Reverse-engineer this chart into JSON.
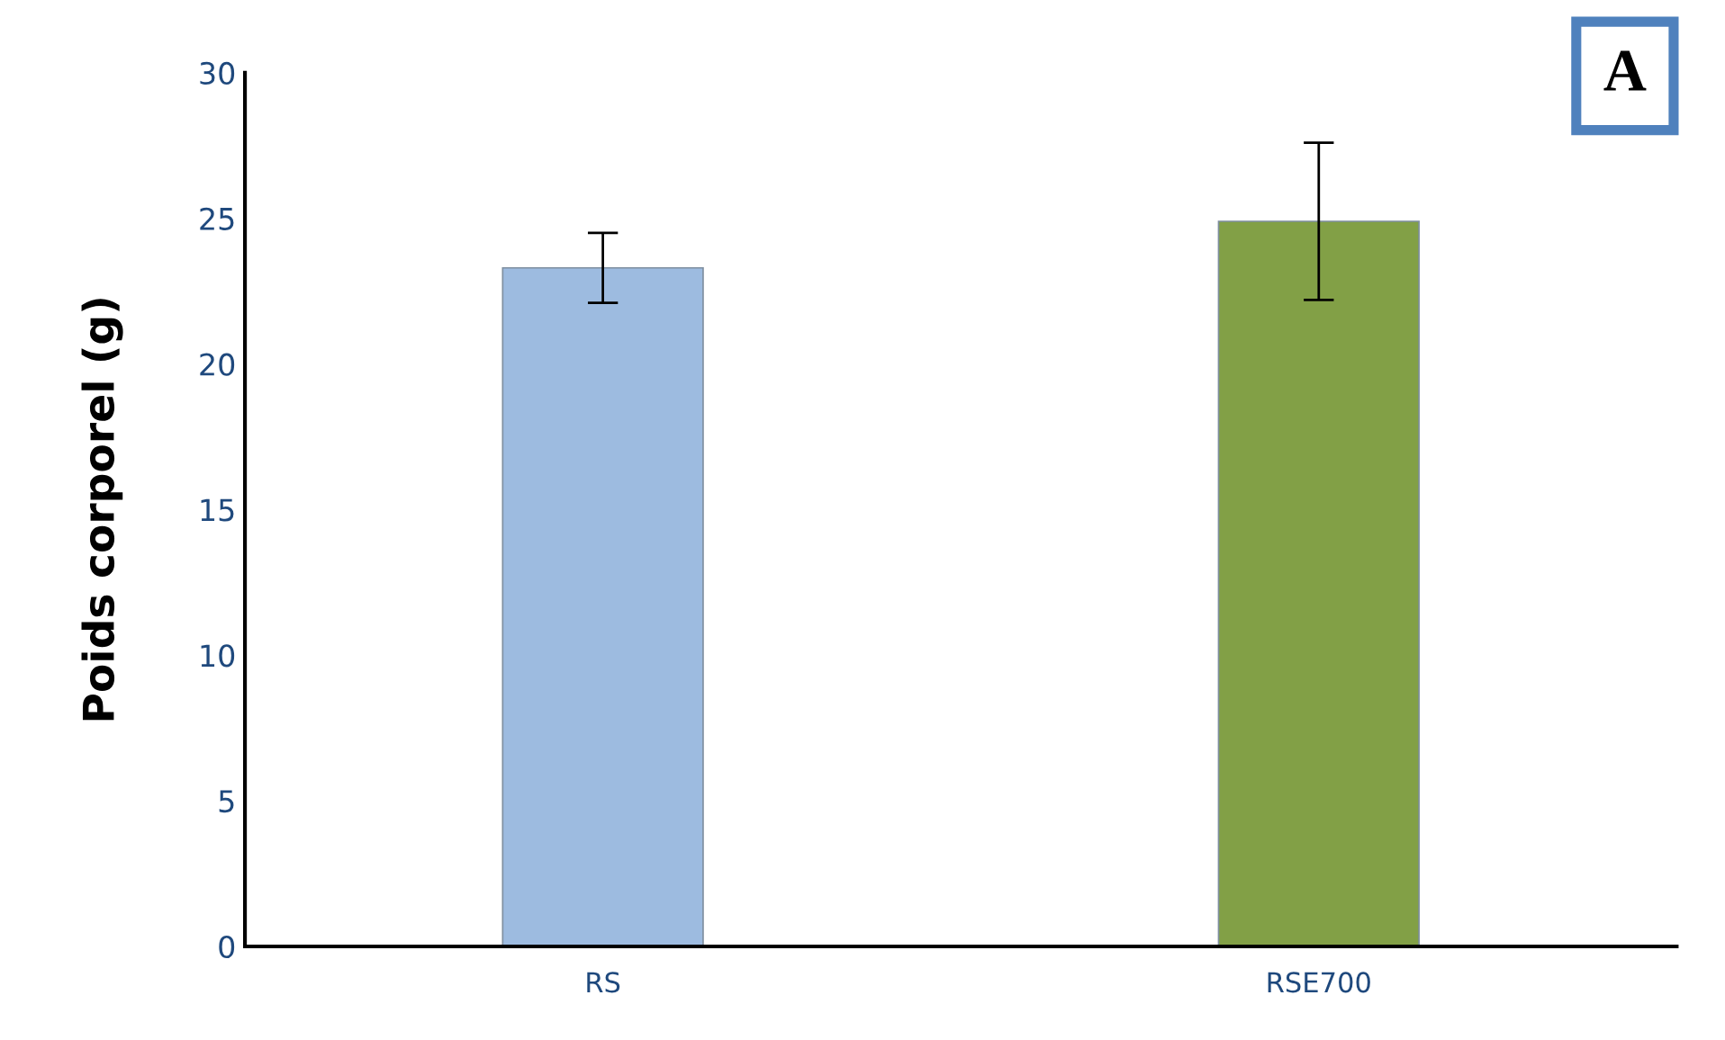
{
  "chart_data": {
    "type": "bar",
    "ylabel": "Poids corporel (g)",
    "categories": [
      "RS",
      "RSE700"
    ],
    "values": [
      23.3,
      24.9
    ],
    "errors": [
      1.2,
      2.7
    ],
    "colors": [
      "#9dbbe0",
      "#82a046"
    ],
    "ylim": [
      0,
      30
    ],
    "yticks": [
      0,
      5,
      10,
      15,
      20,
      25,
      30
    ],
    "grid": false,
    "annotations": [
      "A"
    ]
  }
}
